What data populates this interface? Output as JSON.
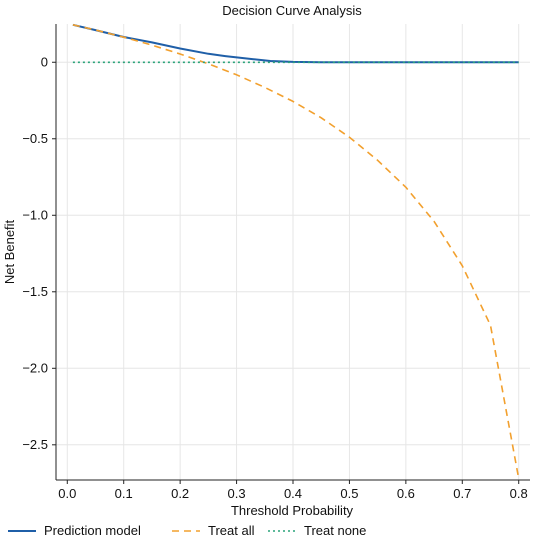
{
  "chart_data": {
    "type": "line",
    "title": "Decision Curve Analysis",
    "xlabel": "Threshold Probability",
    "ylabel": "Net Benefit",
    "xlim": [
      -0.02,
      0.82
    ],
    "ylim": [
      -2.73,
      0.25
    ],
    "xticks": [
      0.0,
      0.1,
      0.2,
      0.3,
      0.4,
      0.5,
      0.6,
      0.7,
      0.8
    ],
    "xtick_labels": [
      "0.0",
      "0.1",
      "0.2",
      "0.3",
      "0.4",
      "0.5",
      "0.6",
      "0.7",
      "0.8"
    ],
    "yticks": [
      0,
      -0.5,
      -1.0,
      -1.5,
      -2.0,
      -2.5
    ],
    "ytick_labels": [
      "0",
      "−0.5",
      "−1.0",
      "−1.5",
      "−2.0",
      "−2.5"
    ],
    "grid": true,
    "legend_position": "bottom",
    "series": [
      {
        "name": "Prediction model",
        "color": "#1f5fa8",
        "style": "solid",
        "x": [
          0.01,
          0.05,
          0.1,
          0.15,
          0.2,
          0.25,
          0.28,
          0.3,
          0.33,
          0.36,
          0.4,
          0.45,
          0.5,
          0.6,
          0.7,
          0.8
        ],
        "y": [
          0.245,
          0.21,
          0.165,
          0.13,
          0.09,
          0.055,
          0.04,
          0.032,
          0.02,
          0.008,
          0.002,
          0.0,
          0.0,
          0.0,
          0.0,
          0.0
        ]
      },
      {
        "name": "Treat all",
        "color": "#f2a02e",
        "style": "dashed",
        "x": [
          0.01,
          0.05,
          0.1,
          0.15,
          0.2,
          0.25,
          0.3,
          0.35,
          0.4,
          0.45,
          0.5,
          0.55,
          0.6,
          0.65,
          0.7,
          0.75,
          0.8
        ],
        "y": [
          0.245,
          0.211,
          0.164,
          0.112,
          0.054,
          -0.01,
          -0.082,
          -0.164,
          -0.256,
          -0.363,
          -0.49,
          -0.641,
          -0.817,
          -1.04,
          -1.33,
          -1.72,
          -2.72
        ]
      },
      {
        "name": "Treat none",
        "color": "#2aa37a",
        "style": "dotted",
        "x": [
          0.01,
          0.8
        ],
        "y": [
          0,
          0
        ]
      }
    ]
  }
}
